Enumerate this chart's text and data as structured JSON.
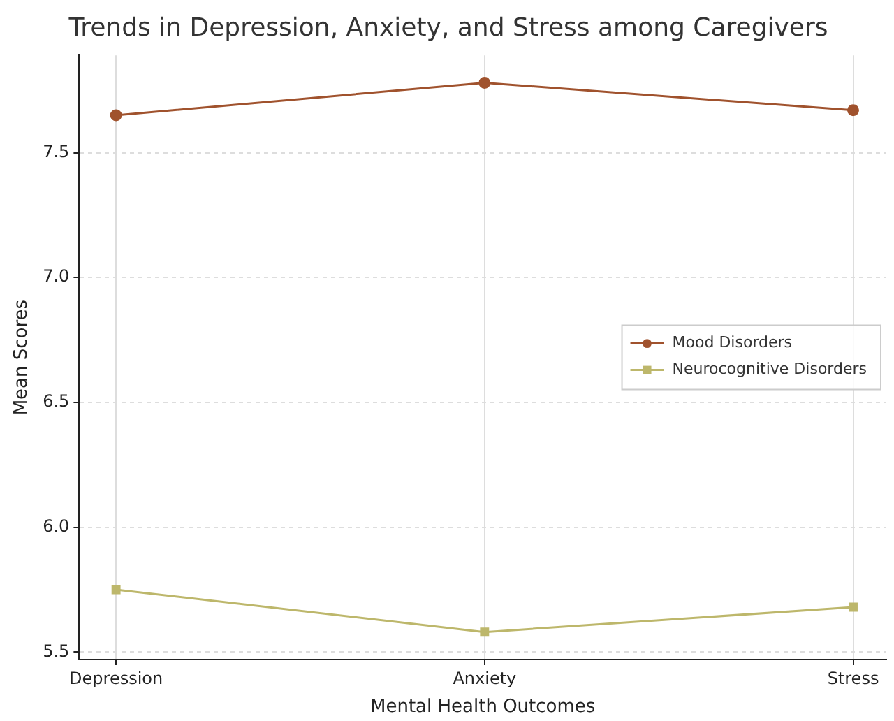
{
  "chart_data": {
    "type": "line",
    "title": "Trends in Depression, Anxiety, and Stress among Caregivers",
    "xlabel": "Mental Health Outcomes",
    "ylabel": "Mean Scores",
    "categories": [
      "Depression",
      "Anxiety",
      "Stress"
    ],
    "series": [
      {
        "name": "Mood Disorders",
        "color": "#a0522d",
        "marker": "circle",
        "values": [
          7.65,
          7.78,
          7.67
        ]
      },
      {
        "name": "Neurocognitive Disorders",
        "color": "#bdb76b",
        "marker": "square",
        "values": [
          5.75,
          5.58,
          5.68
        ]
      }
    ],
    "ylim": [
      5.47,
      7.89
    ],
    "yticks": [
      5.5,
      {
        "value": 6,
        "label": "6.0"
      },
      6.5,
      {
        "value": 7,
        "label": "7.0"
      },
      7.5
    ],
    "grid": true,
    "legend": "center right",
    "line_style": "solid"
  }
}
